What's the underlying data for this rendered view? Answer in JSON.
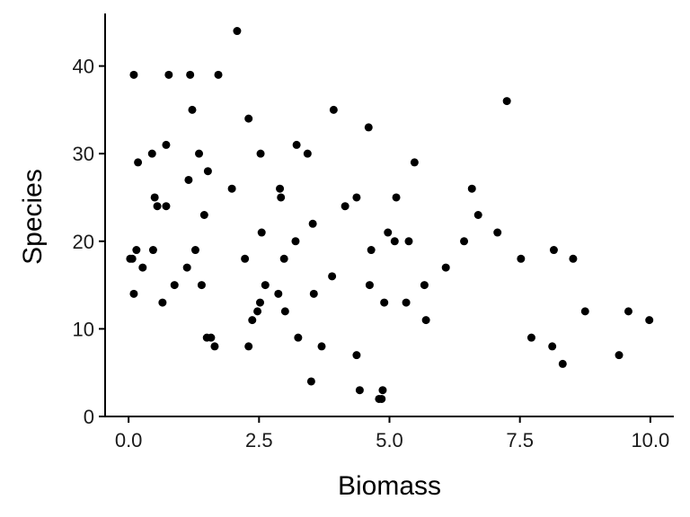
{
  "chart_data": {
    "type": "scatter",
    "xlabel": "Biomass",
    "ylabel": "Species",
    "xlim": [
      -0.45,
      10.45
    ],
    "ylim": [
      0,
      46
    ],
    "x_ticks": [
      0,
      2.5,
      5,
      7.5,
      10
    ],
    "x_tick_labels": [
      "0.0",
      "2.5",
      "5.0",
      "7.5",
      "10.0"
    ],
    "y_ticks": [
      0,
      10,
      20,
      30,
      40
    ],
    "y_tick_labels": [
      "0",
      "10",
      "20",
      "30",
      "40"
    ],
    "grid": false,
    "legend": "none",
    "point_color": "#000000",
    "points": [
      [
        0.03,
        18
      ],
      [
        0.07,
        18
      ],
      [
        0.1,
        14
      ],
      [
        0.1,
        39
      ],
      [
        0.15,
        19
      ],
      [
        0.18,
        29
      ],
      [
        0.27,
        17
      ],
      [
        0.45,
        30
      ],
      [
        0.47,
        19
      ],
      [
        0.5,
        25
      ],
      [
        0.55,
        24
      ],
      [
        0.65,
        13
      ],
      [
        0.72,
        31
      ],
      [
        0.72,
        24
      ],
      [
        0.77,
        39
      ],
      [
        0.88,
        15
      ],
      [
        1.12,
        17
      ],
      [
        1.15,
        27
      ],
      [
        1.18,
        39
      ],
      [
        1.22,
        35
      ],
      [
        1.28,
        19
      ],
      [
        1.35,
        30
      ],
      [
        1.4,
        15
      ],
      [
        1.45,
        23
      ],
      [
        1.5,
        9
      ],
      [
        1.52,
        28
      ],
      [
        1.58,
        9
      ],
      [
        1.65,
        8
      ],
      [
        1.72,
        39
      ],
      [
        1.98,
        26
      ],
      [
        2.08,
        44
      ],
      [
        2.23,
        18
      ],
      [
        2.3,
        34
      ],
      [
        2.3,
        8
      ],
      [
        2.37,
        11
      ],
      [
        2.47,
        12
      ],
      [
        2.52,
        13
      ],
      [
        2.53,
        30
      ],
      [
        2.55,
        21
      ],
      [
        2.62,
        15
      ],
      [
        2.87,
        14
      ],
      [
        2.9,
        26
      ],
      [
        2.92,
        25
      ],
      [
        2.98,
        18
      ],
      [
        3.0,
        12
      ],
      [
        3.2,
        20
      ],
      [
        3.22,
        31
      ],
      [
        3.25,
        9
      ],
      [
        3.43,
        30
      ],
      [
        3.5,
        4
      ],
      [
        3.53,
        22
      ],
      [
        3.55,
        14
      ],
      [
        3.7,
        8
      ],
      [
        3.9,
        16
      ],
      [
        3.93,
        35
      ],
      [
        4.15,
        24
      ],
      [
        4.37,
        25
      ],
      [
        4.37,
        7
      ],
      [
        4.43,
        3
      ],
      [
        4.6,
        33
      ],
      [
        4.62,
        15
      ],
      [
        4.65,
        19
      ],
      [
        4.8,
        2
      ],
      [
        4.85,
        2
      ],
      [
        4.87,
        3
      ],
      [
        4.9,
        13
      ],
      [
        4.97,
        21
      ],
      [
        5.1,
        20
      ],
      [
        5.13,
        25
      ],
      [
        5.32,
        13
      ],
      [
        5.37,
        20
      ],
      [
        5.48,
        29
      ],
      [
        5.67,
        15
      ],
      [
        5.7,
        11
      ],
      [
        6.08,
        17
      ],
      [
        6.43,
        20
      ],
      [
        6.58,
        26
      ],
      [
        6.7,
        23
      ],
      [
        7.07,
        21
      ],
      [
        7.25,
        36
      ],
      [
        7.52,
        18
      ],
      [
        7.72,
        9
      ],
      [
        8.12,
        8
      ],
      [
        8.15,
        19
      ],
      [
        8.32,
        6
      ],
      [
        8.52,
        18
      ],
      [
        8.75,
        12
      ],
      [
        9.4,
        7
      ],
      [
        9.58,
        12
      ],
      [
        9.98,
        11
      ]
    ]
  }
}
